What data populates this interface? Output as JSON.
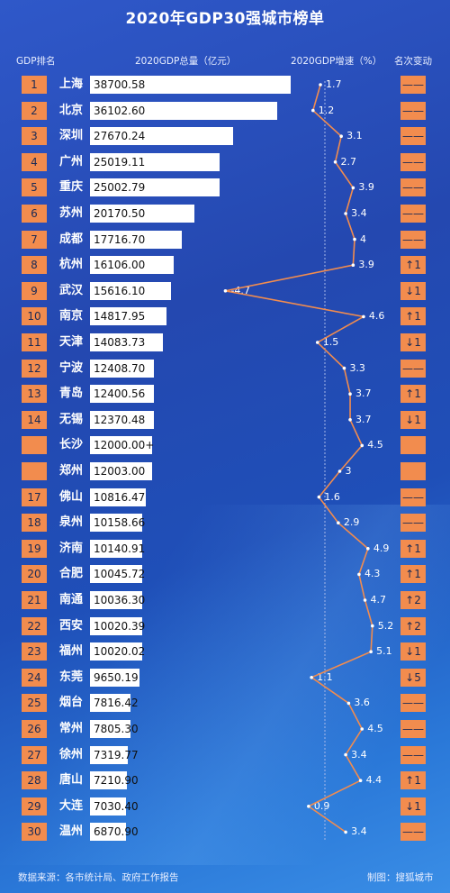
{
  "title": "2020年GDP30强城市榜单",
  "headers": {
    "rank": "GDP排名",
    "gdp": "2020GDP总量（亿元）",
    "growth": "2020GDP增速（%）",
    "change": "名次变动"
  },
  "footer": {
    "source": "数据来源：各市统计局、政府工作报告",
    "credit": "制图：搜狐城市"
  },
  "colors": {
    "accent": "#f28c4e",
    "bar": "#ffffff",
    "line": "#f28c4e"
  },
  "chart_data": {
    "type": "bar",
    "title": "2020年GDP30强城市榜单",
    "xlabel": "2020GDP总量（亿元）",
    "ylabel": "",
    "xlim": [
      0,
      40000
    ],
    "rows": [
      {
        "rank": "1",
        "city": "上海",
        "gdp": 38700.58,
        "gdp_label": "38700.58",
        "growth": 1.7,
        "growth_label": "1.7",
        "change": "——"
      },
      {
        "rank": "2",
        "city": "北京",
        "gdp": 36102.6,
        "gdp_label": "36102.60",
        "growth": 1.2,
        "growth_label": "1.2",
        "change": "——"
      },
      {
        "rank": "3",
        "city": "深圳",
        "gdp": 27670.24,
        "gdp_label": "27670.24",
        "growth": 3.1,
        "growth_label": "3.1",
        "change": "——"
      },
      {
        "rank": "4",
        "city": "广州",
        "gdp": 25019.11,
        "gdp_label": "25019.11",
        "growth": 2.7,
        "growth_label": "2.7",
        "change": "——"
      },
      {
        "rank": "5",
        "city": "重庆",
        "gdp": 25002.79,
        "gdp_label": "25002.79",
        "growth": 3.9,
        "growth_label": "3.9",
        "change": "——"
      },
      {
        "rank": "6",
        "city": "苏州",
        "gdp": 20170.5,
        "gdp_label": "20170.50",
        "growth": 3.4,
        "growth_label": "3.4",
        "change": "——"
      },
      {
        "rank": "7",
        "city": "成都",
        "gdp": 17716.7,
        "gdp_label": "17716.70",
        "growth": 4.0,
        "growth_label": "4",
        "change": "——"
      },
      {
        "rank": "8",
        "city": "杭州",
        "gdp": 16106.0,
        "gdp_label": "16106.00",
        "growth": 3.9,
        "growth_label": "3.9",
        "change": "↑1"
      },
      {
        "rank": "9",
        "city": "武汉",
        "gdp": 15616.1,
        "gdp_label": "15616.10",
        "growth": -4.7,
        "growth_label": "-4.7",
        "change": "↓1"
      },
      {
        "rank": "10",
        "city": "南京",
        "gdp": 14817.95,
        "gdp_label": "14817.95",
        "growth": 4.6,
        "growth_label": "4.6",
        "change": "↑1"
      },
      {
        "rank": "11",
        "city": "天津",
        "gdp": 14083.73,
        "gdp_label": "14083.73",
        "growth": 1.5,
        "growth_label": "1.5",
        "change": "↓1"
      },
      {
        "rank": "12",
        "city": "宁波",
        "gdp": 12408.7,
        "gdp_label": "12408.70",
        "growth": 3.3,
        "growth_label": "3.3",
        "change": "——"
      },
      {
        "rank": "13",
        "city": "青岛",
        "gdp": 12400.56,
        "gdp_label": "12400.56",
        "growth": 3.7,
        "growth_label": "3.7",
        "change": "↑1"
      },
      {
        "rank": "14",
        "city": "无锡",
        "gdp": 12370.48,
        "gdp_label": "12370.48",
        "growth": 3.7,
        "growth_label": "3.7",
        "change": "↓1"
      },
      {
        "rank": "",
        "city": "长沙",
        "gdp": 12000.0,
        "gdp_label": "12000.00+",
        "growth": 4.5,
        "growth_label": "4.5",
        "change": ""
      },
      {
        "rank": "",
        "city": "郑州",
        "gdp": 12003.0,
        "gdp_label": "12003.00",
        "growth": 3.0,
        "growth_label": "3",
        "change": ""
      },
      {
        "rank": "17",
        "city": "佛山",
        "gdp": 10816.47,
        "gdp_label": "10816.47",
        "growth": 1.6,
        "growth_label": "1.6",
        "change": "——"
      },
      {
        "rank": "18",
        "city": "泉州",
        "gdp": 10158.66,
        "gdp_label": "10158.66",
        "growth": 2.9,
        "growth_label": "2.9",
        "change": "——"
      },
      {
        "rank": "19",
        "city": "济南",
        "gdp": 10140.91,
        "gdp_label": "10140.91",
        "growth": 4.9,
        "growth_label": "4.9",
        "change": "↑1"
      },
      {
        "rank": "20",
        "city": "合肥",
        "gdp": 10045.72,
        "gdp_label": "10045.72",
        "growth": 4.3,
        "growth_label": "4.3",
        "change": "↑1"
      },
      {
        "rank": "21",
        "city": "南通",
        "gdp": 10036.3,
        "gdp_label": "10036.30",
        "growth": 4.7,
        "growth_label": "4.7",
        "change": "↑2"
      },
      {
        "rank": "22",
        "city": "西安",
        "gdp": 10020.39,
        "gdp_label": "10020.39",
        "growth": 5.2,
        "growth_label": "5.2",
        "change": "↑2"
      },
      {
        "rank": "23",
        "city": "福州",
        "gdp": 10020.02,
        "gdp_label": "10020.02",
        "growth": 5.1,
        "growth_label": "5.1",
        "change": "↓1"
      },
      {
        "rank": "24",
        "city": "东莞",
        "gdp": 9650.19,
        "gdp_label": "9650.19",
        "growth": 1.1,
        "growth_label": "1.1",
        "change": "↓5"
      },
      {
        "rank": "25",
        "city": "烟台",
        "gdp": 7816.42,
        "gdp_label": "7816.42",
        "growth": 3.6,
        "growth_label": "3.6",
        "change": "——"
      },
      {
        "rank": "26",
        "city": "常州",
        "gdp": 7805.3,
        "gdp_label": "7805.30",
        "growth": 4.5,
        "growth_label": "4.5",
        "change": "——"
      },
      {
        "rank": "27",
        "city": "徐州",
        "gdp": 7319.77,
        "gdp_label": "7319.77",
        "growth": 3.4,
        "growth_label": "3.4",
        "change": "——"
      },
      {
        "rank": "28",
        "city": "唐山",
        "gdp": 7210.9,
        "gdp_label": "7210.90",
        "growth": 4.4,
        "growth_label": "4.4",
        "change": "↑1"
      },
      {
        "rank": "29",
        "city": "大连",
        "gdp": 7030.4,
        "gdp_label": "7030.40",
        "growth": 0.9,
        "growth_label": "0.9",
        "change": "↓1"
      },
      {
        "rank": "30",
        "city": "温州",
        "gdp": 6870.9,
        "gdp_label": "6870.90",
        "growth": 3.4,
        "growth_label": "3.4",
        "change": "——"
      }
    ]
  }
}
